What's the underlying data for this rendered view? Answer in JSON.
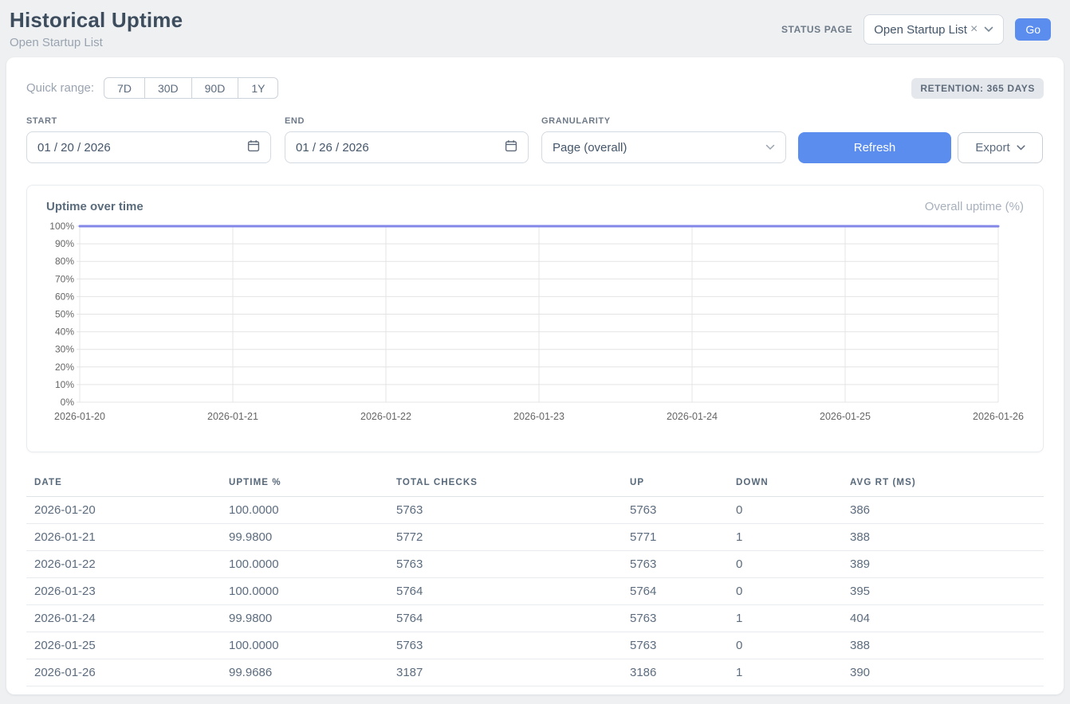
{
  "header": {
    "title": "Historical Uptime",
    "subtitle": "Open Startup List",
    "status_page_label": "STATUS PAGE",
    "status_page_value": "Open Startup List",
    "clear_icon": "×",
    "go_label": "Go"
  },
  "filters": {
    "quick_range_label": "Quick range:",
    "quick_ranges": [
      "7D",
      "30D",
      "90D",
      "1Y"
    ],
    "retention_badge": "RETENTION: 365 DAYS",
    "start_label": "START",
    "start_value": "01 / 20 / 2026",
    "end_label": "END",
    "end_value": "01 / 26 / 2026",
    "granularity_label": "GRANULARITY",
    "granularity_value": "Page (overall)",
    "refresh_label": "Refresh",
    "export_label": "Export"
  },
  "chart_data": {
    "type": "line",
    "title": "Uptime over time",
    "legend": "Overall uptime (%)",
    "x": [
      "2026-01-20",
      "2026-01-21",
      "2026-01-22",
      "2026-01-23",
      "2026-01-24",
      "2026-01-25",
      "2026-01-26"
    ],
    "values": [
      100,
      99.98,
      100,
      100,
      99.98,
      100,
      99.9686
    ],
    "ylim": [
      0,
      100
    ],
    "ytick_step": 10,
    "ytick_suffix": "%",
    "line_color": "#8287e8",
    "grid_color": "#e4e4e4",
    "axis_text_color": "#666666",
    "grid": true,
    "legend_position": "top-right"
  },
  "colors": {
    "accent_blue": "#5b8def",
    "line_indigo": "#8287e8",
    "page_bg": "#eef0f2"
  },
  "table": {
    "columns": [
      "DATE",
      "UPTIME %",
      "TOTAL CHECKS",
      "UP",
      "DOWN",
      "AVG RT (MS)"
    ],
    "rows": [
      [
        "2026-01-20",
        "100.0000",
        "5763",
        "5763",
        "0",
        "386"
      ],
      [
        "2026-01-21",
        "99.9800",
        "5772",
        "5771",
        "1",
        "388"
      ],
      [
        "2026-01-22",
        "100.0000",
        "5763",
        "5763",
        "0",
        "389"
      ],
      [
        "2026-01-23",
        "100.0000",
        "5764",
        "5764",
        "0",
        "395"
      ],
      [
        "2026-01-24",
        "99.9800",
        "5764",
        "5763",
        "1",
        "404"
      ],
      [
        "2026-01-25",
        "100.0000",
        "5763",
        "5763",
        "0",
        "388"
      ],
      [
        "2026-01-26",
        "99.9686",
        "3187",
        "3186",
        "1",
        "390"
      ]
    ]
  }
}
